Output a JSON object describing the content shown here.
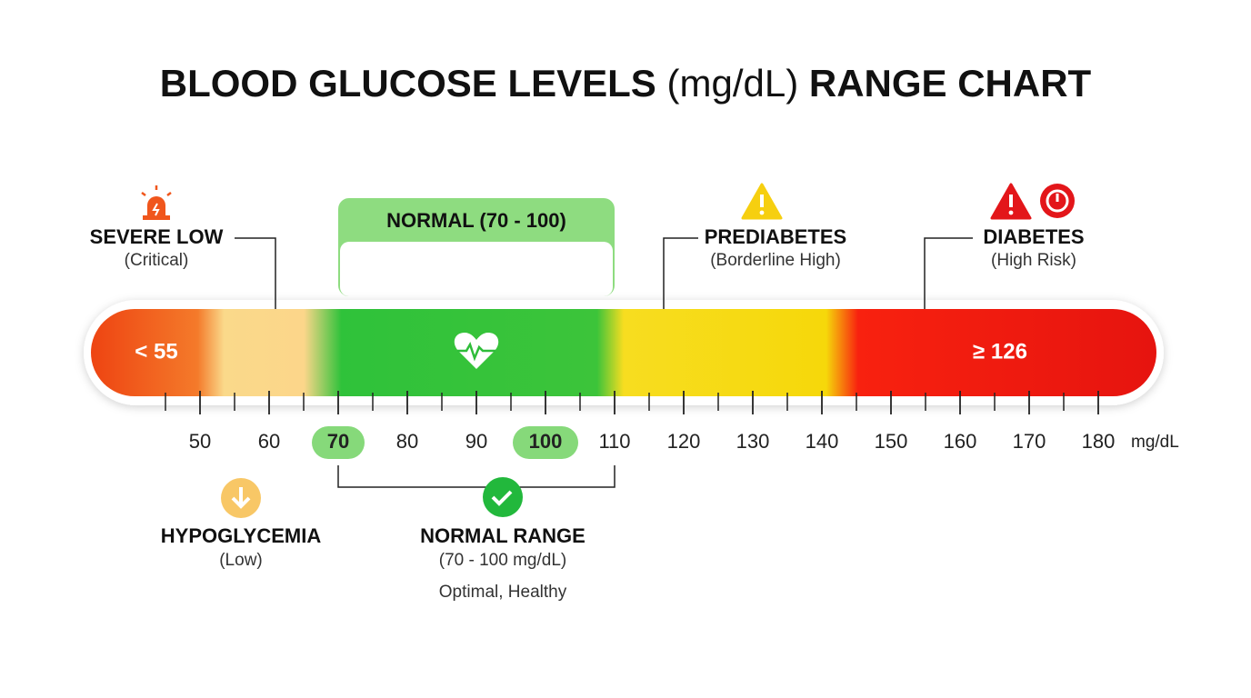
{
  "title": {
    "lead": "BLOOD GLUCOSE LEVELS",
    "unit": "(mg/dL)",
    "tail": "RANGE CHART"
  },
  "callouts": {
    "severe_low": {
      "label": "SEVERE LOW",
      "note": "(Critical)"
    },
    "normal_header": "NORMAL (70 - 100)",
    "prediabetes": {
      "label": "PREDIABETES",
      "note": "(Borderline High)"
    },
    "diabetes": {
      "label": "DIABETES",
      "note": "(High Risk)"
    },
    "hypoglycemia": {
      "label": "HYPOGLYCEMIA",
      "note": "(Low)"
    },
    "normal_range": {
      "label": "NORMAL RANGE",
      "note": "(70 - 100 mg/dL)",
      "detail": "Optimal, Healthy"
    }
  },
  "bar": {
    "low_label": "< 55",
    "high_label": "≥ 126"
  },
  "scale": {
    "ticks": [
      50,
      60,
      70,
      80,
      90,
      100,
      110,
      120,
      130,
      140,
      150,
      160,
      170,
      180
    ],
    "unit": "mg/dL",
    "highlight": [
      70,
      100
    ]
  }
}
